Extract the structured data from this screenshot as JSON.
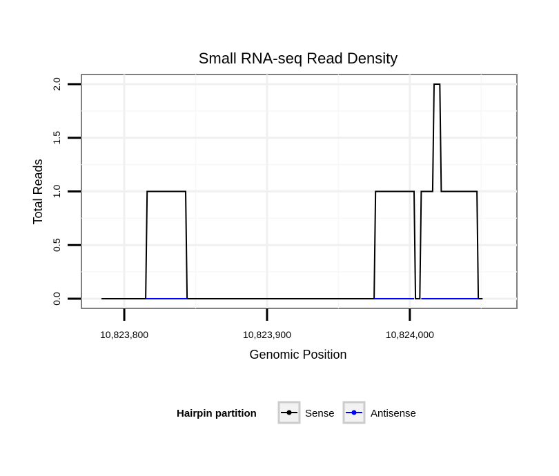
{
  "chart_data": {
    "type": "line",
    "title": "Small RNA-seq Read Density",
    "xlabel": "Genomic Position",
    "ylabel": "Total Reads",
    "xlim": [
      10823770,
      10824075
    ],
    "ylim": [
      -0.09,
      2.09
    ],
    "x_ticks": [
      10823800,
      10823900,
      10824000
    ],
    "x_tick_labels": [
      "10,823,800",
      "10,823,900",
      "10,824,000"
    ],
    "y_ticks": [
      0,
      0.5,
      1,
      1.5,
      2
    ],
    "y_tick_labels": [
      "0.0",
      "0.5",
      "1.0",
      "1.5",
      "2.0"
    ],
    "grid": true,
    "legend": {
      "title": "Hairpin partition",
      "position": "bottom",
      "entries": [
        {
          "label": "Sense",
          "color": "#000000"
        },
        {
          "label": "Antisense",
          "color": "#0000ff"
        }
      ]
    },
    "series": [
      {
        "name": "Sense",
        "color": "#000000",
        "x": [
          10823784,
          10823815,
          10823816,
          10823843,
          10823844,
          10823975,
          10823976,
          10824003,
          10824004,
          10824007,
          10824008,
          10824016,
          10824017,
          10824021,
          10824022,
          10824029,
          10824030,
          10824047,
          10824048,
          10824051
        ],
        "y": [
          0,
          0,
          1,
          1,
          0,
          0,
          1,
          1,
          0,
          0,
          1,
          1,
          2,
          2,
          1,
          1,
          1,
          1,
          0,
          0
        ]
      },
      {
        "name": "Antisense",
        "color": "#0000ff",
        "x": [
          10823815,
          10823844,
          10823975,
          10824003,
          10824008,
          10824048
        ],
        "y": [
          0,
          0,
          0,
          0,
          0,
          0
        ],
        "segments": [
          [
            0,
            1
          ],
          [
            2,
            3
          ],
          [
            4,
            5
          ]
        ]
      }
    ]
  }
}
